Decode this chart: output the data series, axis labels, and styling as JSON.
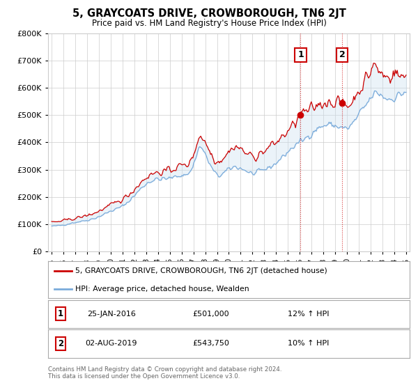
{
  "title": "5, GRAYCOATS DRIVE, CROWBOROUGH, TN6 2JT",
  "subtitle": "Price paid vs. HM Land Registry's House Price Index (HPI)",
  "red_label": "5, GRAYCOATS DRIVE, CROWBOROUGH, TN6 2JT (detached house)",
  "blue_label": "HPI: Average price, detached house, Wealden",
  "footnote": "Contains HM Land Registry data © Crown copyright and database right 2024.\nThis data is licensed under the Open Government Licence v3.0.",
  "marker1_date": "25-JAN-2016",
  "marker1_price": "£501,000",
  "marker1_hpi": "12% ↑ HPI",
  "marker2_date": "02-AUG-2019",
  "marker2_price": "£543,750",
  "marker2_hpi": "10% ↑ HPI",
  "ylim": [
    0,
    800000
  ],
  "yticks": [
    0,
    100000,
    200000,
    300000,
    400000,
    500000,
    600000,
    700000,
    800000
  ],
  "xlim_start": 1994.7,
  "xlim_end": 2025.3,
  "red_color": "#cc0000",
  "blue_color": "#7aabdb",
  "blue_fill_color": "#c8dff0",
  "marker1_x": 2016.07,
  "marker1_y": 501000,
  "marker2_x": 2019.58,
  "marker2_y": 543750,
  "background_color": "#ffffff",
  "grid_color": "#cccccc",
  "marker_box_color": "#cc0000"
}
